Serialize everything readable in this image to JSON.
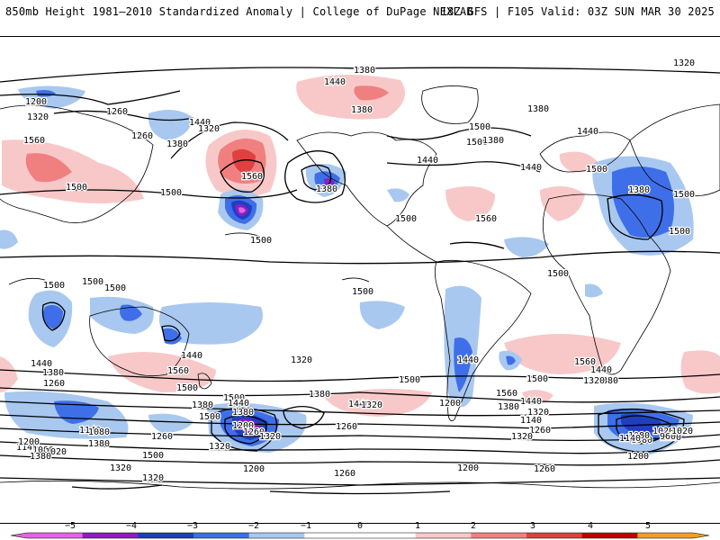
{
  "header": {
    "title": "850mb Height 1981–2010 Standardized Anomaly | College of DuPage NEXLAB",
    "run_info": "18Z GFS | F105 Valid: 03Z SUN MAR 30 2025"
  },
  "colorbar": {
    "ticks": [
      "−5",
      "−4",
      "−3",
      "−2",
      "−1",
      "0",
      "1",
      "2",
      "3",
      "4",
      "5"
    ],
    "colors": {
      "n5": "#e066e0",
      "n4": "#8a1fc4",
      "n3": "#1f3fbf",
      "n2": "#3f6fe8",
      "n1": "#a8c8f0",
      "zero": "#ffffff",
      "p1": "#f8c8c8",
      "p2": "#f08080",
      "p3": "#e04040",
      "p4": "#c00000",
      "p5": "#f0a020"
    }
  },
  "contour_labels": [
    "1380",
    "1320",
    "1440",
    "1200",
    "1320",
    "1260",
    "1440",
    "1320",
    "1380",
    "1260",
    "1560",
    "1380",
    "1500",
    "1500",
    "1560",
    "1560",
    "1380",
    "1440",
    "1500",
    "1440",
    "1500",
    "1380",
    "1380",
    "1440",
    "1500",
    "1500",
    "1500",
    "1500",
    "1500",
    "1500",
    "1500",
    "1500",
    "1440",
    "1560",
    "1500",
    "1440",
    "1380",
    "1260",
    "1500",
    "1560",
    "1440",
    "1380",
    "1500",
    "1440",
    "1320",
    "1380",
    "1440",
    "1320",
    "1260",
    "1140",
    "1080",
    "1020",
    "1140",
    "1080",
    "1200",
    "1260",
    "1320",
    "1380",
    "1320",
    "1320",
    "1380",
    "1500",
    "1380",
    "1500",
    "1320",
    "1200",
    "1140",
    "1080",
    "1020",
    "1020",
    "1080",
    "960",
    "1020",
    "1140",
    "1200",
    "1200",
    "1260",
    "1200",
    "1260",
    "1380",
    "1500",
    "1500",
    "1500",
    "1440",
    "1380",
    "1200",
    "1260",
    "1320",
    "1380",
    "1560",
    "1440",
    "1320",
    "1140",
    "1260",
    "1320"
  ]
}
